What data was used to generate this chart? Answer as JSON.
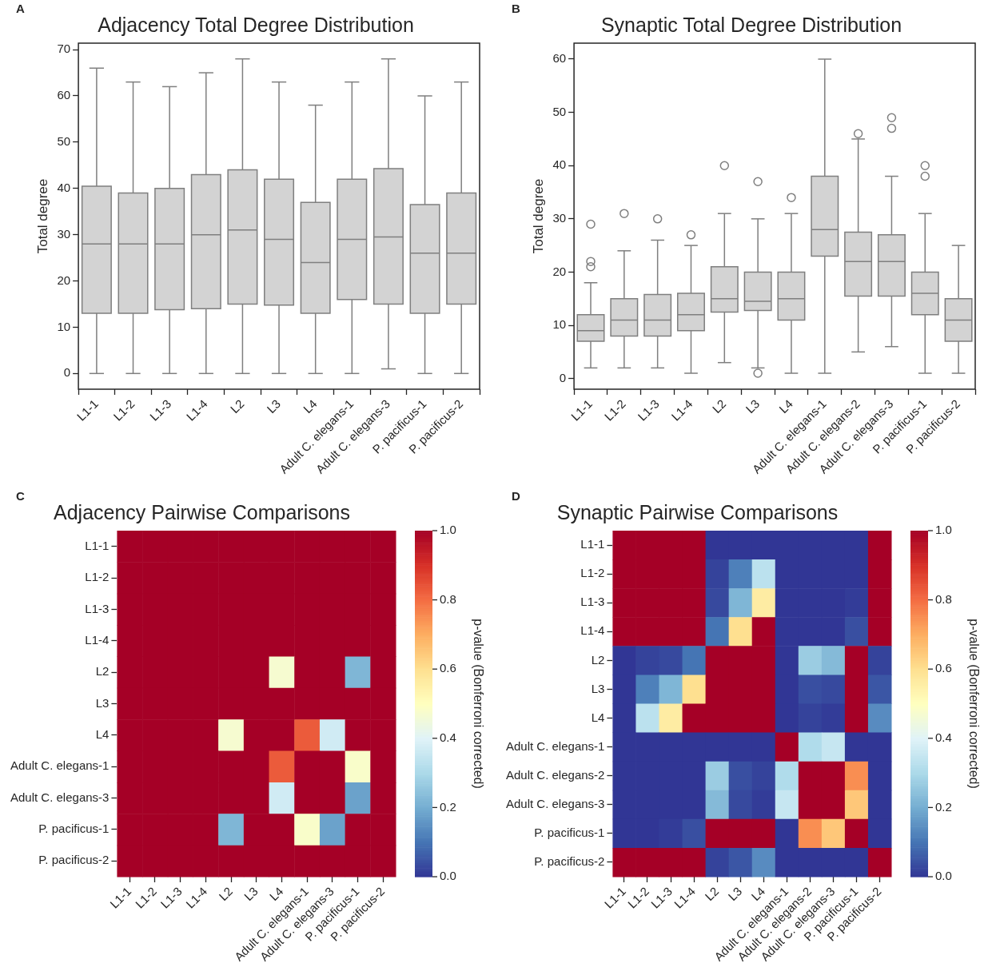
{
  "chart_data": [
    {
      "type": "box",
      "title": "Adjacency Total Degree Distribution",
      "ylabel": "Total degree",
      "annotations": [
        "A"
      ],
      "categories": [
        "L1-1",
        "L1-2",
        "L1-3",
        "L1-4",
        "L2",
        "L3",
        "L4",
        "Adult C. elegans-1",
        "Adult C. elegans-3",
        "P. pacificus-1",
        "P. pacificus-2"
      ],
      "ylim": [
        -3.4,
        71.4
      ],
      "yticks": [
        0,
        10,
        20,
        30,
        40,
        50,
        60,
        70
      ],
      "series": [
        {
          "color": "#d3d3d3",
          "boxes": [
            {
              "low": 0,
              "q1": 13,
              "median": 28,
              "q3": 40.5,
              "high": 66
            },
            {
              "low": 0,
              "q1": 13,
              "median": 28,
              "q3": 39,
              "high": 63
            },
            {
              "low": 0,
              "q1": 13.8,
              "median": 28,
              "q3": 40,
              "high": 62
            },
            {
              "low": 0,
              "q1": 14,
              "median": 30,
              "q3": 43,
              "high": 65
            },
            {
              "low": 0,
              "q1": 15,
              "median": 31,
              "q3": 44,
              "high": 68
            },
            {
              "low": 0,
              "q1": 14.8,
              "median": 29,
              "q3": 42,
              "high": 63
            },
            {
              "low": 0,
              "q1": 13,
              "median": 24,
              "q3": 37,
              "high": 58
            },
            {
              "low": 0,
              "q1": 16,
              "median": 29,
              "q3": 42,
              "high": 63
            },
            {
              "low": 1,
              "q1": 15,
              "median": 29.5,
              "q3": 44.3,
              "high": 68
            },
            {
              "low": 0,
              "q1": 13,
              "median": 26,
              "q3": 36.5,
              "high": 60
            },
            {
              "low": 0,
              "q1": 15,
              "median": 26,
              "q3": 39,
              "high": 63
            }
          ]
        }
      ]
    },
    {
      "type": "box",
      "title": "Synaptic Total Degree Distribution",
      "ylabel": "Total degree",
      "annotations": [
        "B"
      ],
      "categories": [
        "L1-1",
        "L1-2",
        "L1-3",
        "L1-4",
        "L2",
        "L3",
        "L4",
        "Adult C. elegans-1",
        "Adult C. elegans-2",
        "Adult C. elegans-3",
        "P. pacificus-1",
        "P. pacificus-2"
      ],
      "ylim": [
        -2,
        63
      ],
      "yticks": [
        0,
        10,
        20,
        30,
        40,
        50,
        60
      ],
      "series": [
        {
          "color": "#d3d3d3",
          "boxes": [
            {
              "low": 2,
              "q1": 7,
              "median": 9,
              "q3": 12,
              "high": 18,
              "outliers": [
                21,
                22,
                29
              ]
            },
            {
              "low": 2,
              "q1": 8,
              "median": 11,
              "q3": 15,
              "high": 24,
              "outliers": [
                31
              ]
            },
            {
              "low": 2,
              "q1": 8,
              "median": 11,
              "q3": 15.8,
              "high": 26,
              "outliers": [
                30
              ]
            },
            {
              "low": 1,
              "q1": 9,
              "median": 12,
              "q3": 16,
              "high": 25,
              "outliers": [
                27
              ]
            },
            {
              "low": 3,
              "q1": 12.5,
              "median": 15,
              "q3": 21,
              "high": 31,
              "outliers": [
                40
              ]
            },
            {
              "low": 2,
              "q1": 12.8,
              "median": 14.5,
              "q3": 20,
              "high": 30,
              "outliers": [
                1,
                37
              ]
            },
            {
              "low": 1,
              "q1": 11,
              "median": 15,
              "q3": 20,
              "high": 31,
              "outliers": [
                34
              ]
            },
            {
              "low": 1,
              "q1": 23,
              "median": 28,
              "q3": 38,
              "high": 60
            },
            {
              "low": 5,
              "q1": 15.5,
              "median": 22,
              "q3": 27.5,
              "high": 45,
              "outliers": [
                46
              ]
            },
            {
              "low": 6,
              "q1": 15.5,
              "median": 22,
              "q3": 27,
              "high": 38,
              "outliers": [
                47,
                49
              ]
            },
            {
              "low": 1,
              "q1": 12,
              "median": 16,
              "q3": 20,
              "high": 31,
              "outliers": [
                38,
                40
              ]
            },
            {
              "low": 1,
              "q1": 7,
              "median": 11,
              "q3": 15,
              "high": 25
            }
          ]
        }
      ]
    },
    {
      "type": "heatmap",
      "title": "Adjacency Pairwise Comparisons",
      "clabel": "p-value (Bonferroni corrected)",
      "annotations": [
        "C"
      ],
      "categories": [
        "L1-1",
        "L1-2",
        "L1-3",
        "L1-4",
        "L2",
        "L3",
        "L4",
        "Adult C. elegans-1",
        "Adult C. elegans-3",
        "P. pacificus-1",
        "P. pacificus-2"
      ],
      "y_categories": [
        "L1-1",
        "L1-2",
        "L1-3",
        "L1-4",
        "L2",
        "L3",
        "L4",
        "Adult C. elegans-1",
        "Adult C. elegans-3",
        "P. pacificus-1",
        "P. pacificus-2"
      ],
      "clim": [
        0,
        1
      ],
      "cticks": [
        {
          "value": 0,
          "label": "0.0"
        },
        {
          "value": 0.2,
          "label": "0.2"
        },
        {
          "value": 0.4,
          "label": "0.4"
        },
        {
          "value": 0.6,
          "label": "0.6"
        },
        {
          "value": 0.8,
          "label": "0.8"
        },
        {
          "value": 1,
          "label": "1.0"
        }
      ],
      "cells": [
        [
          1,
          1,
          1,
          1,
          1,
          1,
          1,
          1,
          1,
          1,
          1
        ],
        [
          1,
          1,
          1,
          1,
          1,
          1,
          1,
          1,
          1,
          1,
          1
        ],
        [
          1,
          1,
          1,
          1,
          1,
          1,
          1,
          1,
          1,
          1,
          1
        ],
        [
          1,
          1,
          1,
          1,
          1,
          1,
          1,
          1,
          1,
          1,
          1
        ],
        [
          1,
          1,
          1,
          1,
          1,
          1,
          0.47,
          1,
          1,
          0.22,
          1
        ],
        [
          1,
          1,
          1,
          1,
          1,
          1,
          1,
          1,
          1,
          1,
          1
        ],
        [
          1,
          1,
          1,
          1,
          0.47,
          1,
          1,
          0.83,
          0.37,
          1,
          1
        ],
        [
          1,
          1,
          1,
          1,
          1,
          1,
          0.83,
          1,
          1,
          0.48,
          1
        ],
        [
          1,
          1,
          1,
          1,
          1,
          1,
          0.37,
          1,
          1,
          0.18,
          1
        ],
        [
          1,
          1,
          1,
          1,
          0.22,
          1,
          1,
          0.48,
          0.18,
          1,
          1
        ],
        [
          1,
          1,
          1,
          1,
          1,
          1,
          1,
          1,
          1,
          1,
          1
        ]
      ]
    },
    {
      "type": "heatmap",
      "title": "Synaptic Pairwise Comparisons",
      "clabel": "p-value (Bonferroni corrected)",
      "annotations": [
        "D"
      ],
      "categories": [
        "L1-1",
        "L1-2",
        "L1-3",
        "L1-4",
        "L2",
        "L3",
        "L4",
        "Adult C. elegans-1",
        "Adult C. elegans-2",
        "Adult C. elegans-3",
        "P. pacificus-1",
        "P. pacificus-2"
      ],
      "y_categories": [
        "L1-1",
        "L1-2",
        "L1-3",
        "L1-4",
        "L2",
        "L3",
        "L4",
        "Adult C. elegans-1",
        "Adult C. elegans-2",
        "Adult C. elegans-3",
        "P. pacificus-1",
        "P. pacificus-2"
      ],
      "clim": [
        0,
        1
      ],
      "cticks": [
        {
          "value": 0,
          "label": "0.0"
        },
        {
          "value": 0.2,
          "label": "0.2"
        },
        {
          "value": 0.4,
          "label": "0.4"
        },
        {
          "value": 0.6,
          "label": "0.6"
        },
        {
          "value": 0.8,
          "label": "0.8"
        },
        {
          "value": 1,
          "label": "1.0"
        }
      ],
      "cells": [
        [
          1,
          1,
          1,
          1,
          0,
          0,
          0,
          0,
          0,
          0,
          0,
          1
        ],
        [
          1,
          1,
          1,
          1,
          0.02,
          0.12,
          0.33,
          0,
          0,
          0,
          0,
          1
        ],
        [
          1,
          1,
          1,
          1,
          0.03,
          0.22,
          0.56,
          0,
          0,
          0,
          0.01,
          1
        ],
        [
          1,
          1,
          1,
          1,
          0.1,
          0.6,
          1,
          0,
          0,
          0,
          0.04,
          1
        ],
        [
          0,
          0.02,
          0.03,
          0.1,
          1,
          1,
          1,
          0,
          0.27,
          0.23,
          1,
          0.02
        ],
        [
          0,
          0.12,
          0.22,
          0.6,
          1,
          1,
          1,
          0,
          0.04,
          0.03,
          1,
          0.05
        ],
        [
          0,
          0.33,
          0.56,
          1,
          1,
          1,
          1,
          0,
          0.02,
          0.01,
          1,
          0.14
        ],
        [
          0,
          0,
          0,
          0,
          0,
          0,
          0,
          1,
          0.31,
          0.35,
          0,
          0
        ],
        [
          0,
          0,
          0,
          0,
          0.27,
          0.04,
          0.02,
          0.31,
          1,
          1,
          0.75,
          0
        ],
        [
          0,
          0,
          0,
          0,
          0.23,
          0.03,
          0.01,
          0.35,
          1,
          1,
          0.65,
          0
        ],
        [
          0,
          0,
          0.01,
          0.04,
          1,
          1,
          1,
          0,
          0.75,
          0.65,
          1,
          0
        ],
        [
          1,
          1,
          1,
          1,
          0.02,
          0.05,
          0.14,
          0,
          0,
          0,
          0,
          1
        ]
      ]
    }
  ]
}
